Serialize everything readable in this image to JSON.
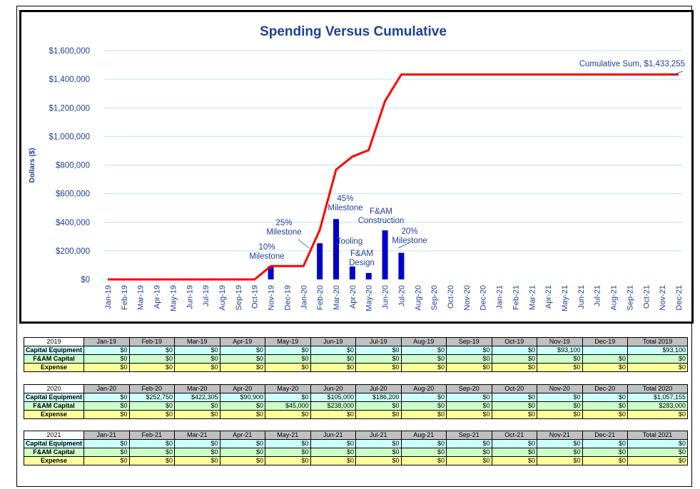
{
  "chart_data": {
    "type": "bar+line",
    "title": "Spending Versus Cumulative",
    "ylabel": "Dollars ($)",
    "ylim": [
      0,
      1600000
    ],
    "yticks": [
      0,
      200000,
      400000,
      600000,
      800000,
      1000000,
      1200000,
      1400000,
      1600000
    ],
    "ytick_labels": [
      "$0",
      "$200,000",
      "$400,000",
      "$600,000",
      "$800,000",
      "$1,000,000",
      "$1,200,000",
      "$1,400,000",
      "$1,600,000"
    ],
    "categories": [
      "Jan-19",
      "Feb-19",
      "Mar-19",
      "Apr-19",
      "May-19",
      "Jun-19",
      "Jul-19",
      "Aug-19",
      "Sep-19",
      "Oct-19",
      "Nov-19",
      "Dec-19",
      "Jan-20",
      "Feb-20",
      "Mar-20",
      "Apr-20",
      "May-20",
      "Jun-20",
      "Jul-20",
      "Aug-20",
      "Sep-20",
      "Oct-20",
      "Nov-20",
      "Dec-20",
      "Jan-21",
      "Feb-21",
      "Mar-21",
      "Apr-21",
      "May-21",
      "Jun-21",
      "Jul-21",
      "Aug-21",
      "Sep-21",
      "Oct-21",
      "Nov-21",
      "Dec-21"
    ],
    "grid": true,
    "colors": {
      "bars": "#0000cc",
      "line": "#ff0000",
      "grid": "#bfe3ee",
      "title": "#1f3f99",
      "axis_text": "#1f3f99"
    },
    "series": [
      {
        "type": "bar",
        "values": [
          0,
          0,
          0,
          0,
          0,
          0,
          0,
          0,
          0,
          0,
          93100,
          0,
          0,
          252750,
          422305,
          90900,
          45000,
          343000,
          186200,
          0,
          0,
          0,
          0,
          0,
          0,
          0,
          0,
          0,
          0,
          0,
          0,
          0,
          0,
          0,
          0,
          0
        ]
      },
      {
        "type": "line",
        "values": [
          0,
          0,
          0,
          0,
          0,
          0,
          0,
          0,
          0,
          0,
          93100,
          93100,
          93100,
          345850,
          768155,
          859055,
          904055,
          1247055,
          1433255,
          1433255,
          1433255,
          1433255,
          1433255,
          1433255,
          1433255,
          1433255,
          1433255,
          1433255,
          1433255,
          1433255,
          1433255,
          1433255,
          1433255,
          1433255,
          1433255,
          1433255
        ]
      }
    ],
    "annotations": [
      {
        "lines": [
          "10%",
          "Milestone"
        ],
        "category": "Nov-19"
      },
      {
        "lines": [
          "25%",
          "Milestone"
        ],
        "category": "Feb-20"
      },
      {
        "lines": [
          "45%",
          "Milestone"
        ],
        "category": "Mar-20"
      },
      {
        "lines": [
          "Tooling"
        ],
        "category": "Apr-20"
      },
      {
        "lines": [
          "F&AM",
          "Design"
        ],
        "category": "May-20"
      },
      {
        "lines": [
          "F&AM",
          "Construction"
        ],
        "category": "Jun-20"
      },
      {
        "lines": [
          "20%",
          "Milestone"
        ],
        "category": "Jul-20"
      },
      {
        "lines": [
          "Cumulative Sum, $1,433,255"
        ],
        "category": "Dec-21"
      }
    ]
  },
  "tables": [
    {
      "year": "2019",
      "headers": [
        "Jan-19",
        "Feb-19",
        "Mar-19",
        "Apr-19",
        "May-19",
        "Jun-19",
        "Jul-19",
        "Aug-19",
        "Sep-19",
        "Oct-19",
        "Nov-19",
        "Dec-19",
        "Total 2019"
      ],
      "rows": [
        {
          "label": "Capital Equipment",
          "cls": "r-cap",
          "values": [
            "$0",
            "$0",
            "$0",
            "$0",
            "$0",
            "$0",
            "$0",
            "$0",
            "$0",
            "$0",
            "$93,100",
            "",
            "$93,100"
          ]
        },
        {
          "label": "F&AM Capital",
          "cls": "r-fam",
          "values": [
            "$0",
            "$0",
            "$0",
            "$0",
            "$0",
            "$0",
            "$0",
            "$0",
            "$0",
            "$0",
            "$0",
            "$0",
            "$0"
          ]
        },
        {
          "label": "Expense",
          "cls": "r-exp",
          "values": [
            "$0",
            "$0",
            "$0",
            "$0",
            "$0",
            "$0",
            "$0",
            "$0",
            "$0",
            "$0",
            "$0",
            "$0",
            "$0"
          ]
        }
      ]
    },
    {
      "year": "2020",
      "headers": [
        "Jan-20",
        "Feb-20",
        "Mar-20",
        "Apr-20",
        "May-20",
        "Jun-20",
        "Jul-20",
        "Aug-20",
        "Sep-20",
        "Oct-20",
        "Nov-20",
        "Dec-20",
        "Total 2020"
      ],
      "rows": [
        {
          "label": "Capital Equipment",
          "cls": "r-cap",
          "values": [
            "$0",
            "$252,750",
            "$422,305",
            "$90,900",
            "$0",
            "$105,000",
            "$186,200",
            "$0",
            "$0",
            "$0",
            "$0",
            "$0",
            "$1,057,155"
          ]
        },
        {
          "label": "F&AM Capital",
          "cls": "r-fam",
          "values": [
            "$0",
            "$0",
            "$0",
            "$0",
            "$45,000",
            "$238,000",
            "$0",
            "$0",
            "$0",
            "$0",
            "$0",
            "$0",
            "$283,000"
          ]
        },
        {
          "label": "Expense",
          "cls": "r-exp",
          "values": [
            "$0",
            "$0",
            "$0",
            "$0",
            "$0",
            "$0",
            "$0",
            "$0",
            "$0",
            "$0",
            "$0",
            "$0",
            "$0"
          ]
        }
      ]
    },
    {
      "year": "2021",
      "headers": [
        "Jan-21",
        "Feb-21",
        "Mar-21",
        "Apr-21",
        "May-21",
        "Jun-21",
        "Jul-21",
        "Aug-21",
        "Sep-21",
        "Oct-21",
        "Nov-21",
        "Dec-21",
        "Total 2021"
      ],
      "rows": [
        {
          "label": "Capital Equipment",
          "cls": "r-cap",
          "values": [
            "$0",
            "$0",
            "$0",
            "$0",
            "$0",
            "$0",
            "$0",
            "$0",
            "$0",
            "$0",
            "$0",
            "$0",
            "$0"
          ]
        },
        {
          "label": "F&AM Capital",
          "cls": "r-fam",
          "values": [
            "$0",
            "$0",
            "$0",
            "$0",
            "$0",
            "$0",
            "$0",
            "$0",
            "$0",
            "$0",
            "$0",
            "$0",
            "$0"
          ]
        },
        {
          "label": "Expense",
          "cls": "r-exp",
          "values": [
            "$0",
            "$0",
            "$0",
            "$0",
            "$0",
            "$0",
            "$0",
            "$0",
            "$0",
            "$0",
            "$0",
            "$0",
            "$0"
          ]
        }
      ]
    }
  ]
}
